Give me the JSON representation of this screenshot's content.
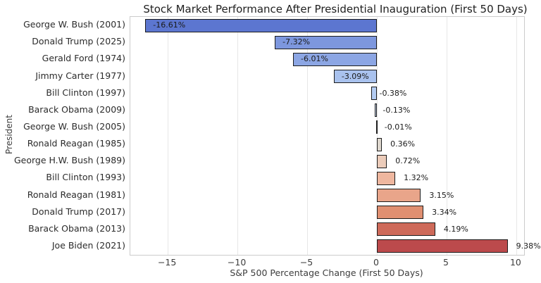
{
  "chart_data": {
    "type": "bar",
    "orientation": "horizontal",
    "title": "Stock Market Performance After Presidential Inauguration (First 50 Days)",
    "xlabel": "S&P 500 Percentage Change (First 50 Days)",
    "ylabel": "President",
    "categories": [
      "George W. Bush (2001)",
      "Donald Trump (2025)",
      "Gerald Ford (1974)",
      "Jimmy Carter (1977)",
      "Bill Clinton (1997)",
      "Barack Obama (2009)",
      "George W. Bush (2005)",
      "Ronald Reagan (1985)",
      "George H.W. Bush (1989)",
      "Bill Clinton (1993)",
      "Ronald Reagan (1981)",
      "Donald Trump (2017)",
      "Barack Obama (2013)",
      "Joe Biden (2021)"
    ],
    "values": [
      -16.61,
      -7.32,
      -6.01,
      -3.09,
      -0.38,
      -0.13,
      -0.01,
      0.36,
      0.72,
      1.32,
      3.15,
      3.34,
      4.19,
      9.38
    ],
    "value_labels": [
      "-16.61%",
      "-7.32%",
      "-6.01%",
      "-3.09%",
      "-0.38%",
      "-0.13%",
      "-0.01%",
      "0.36%",
      "0.72%",
      "1.32%",
      "3.15%",
      "3.34%",
      "4.19%",
      "9.38%"
    ],
    "bar_colors": [
      "#5C76D0",
      "#7D97DE",
      "#8CA6E4",
      "#A9C2EE",
      "#B4CDF3",
      "#C3D1E7",
      "#DCDCDC",
      "#DFD8CF",
      "#ECCCBA",
      "#EFB79F",
      "#E9A58A",
      "#E08F71",
      "#CE6A5A",
      "#BC4A4C"
    ],
    "xticks": [
      -15,
      -10,
      -5,
      0,
      5,
      10
    ],
    "xtick_labels": [
      "−15",
      "−10",
      "−5",
      "0",
      "5",
      "10"
    ],
    "xlim": [
      -17.68,
      10.56
    ],
    "grid": "vertical-light",
    "legend": "none",
    "palette": "coolwarm",
    "bar_edge_color": "#1c1c1c",
    "grid_color": "#e7e7e7",
    "spine_color": "#cccccc"
  }
}
